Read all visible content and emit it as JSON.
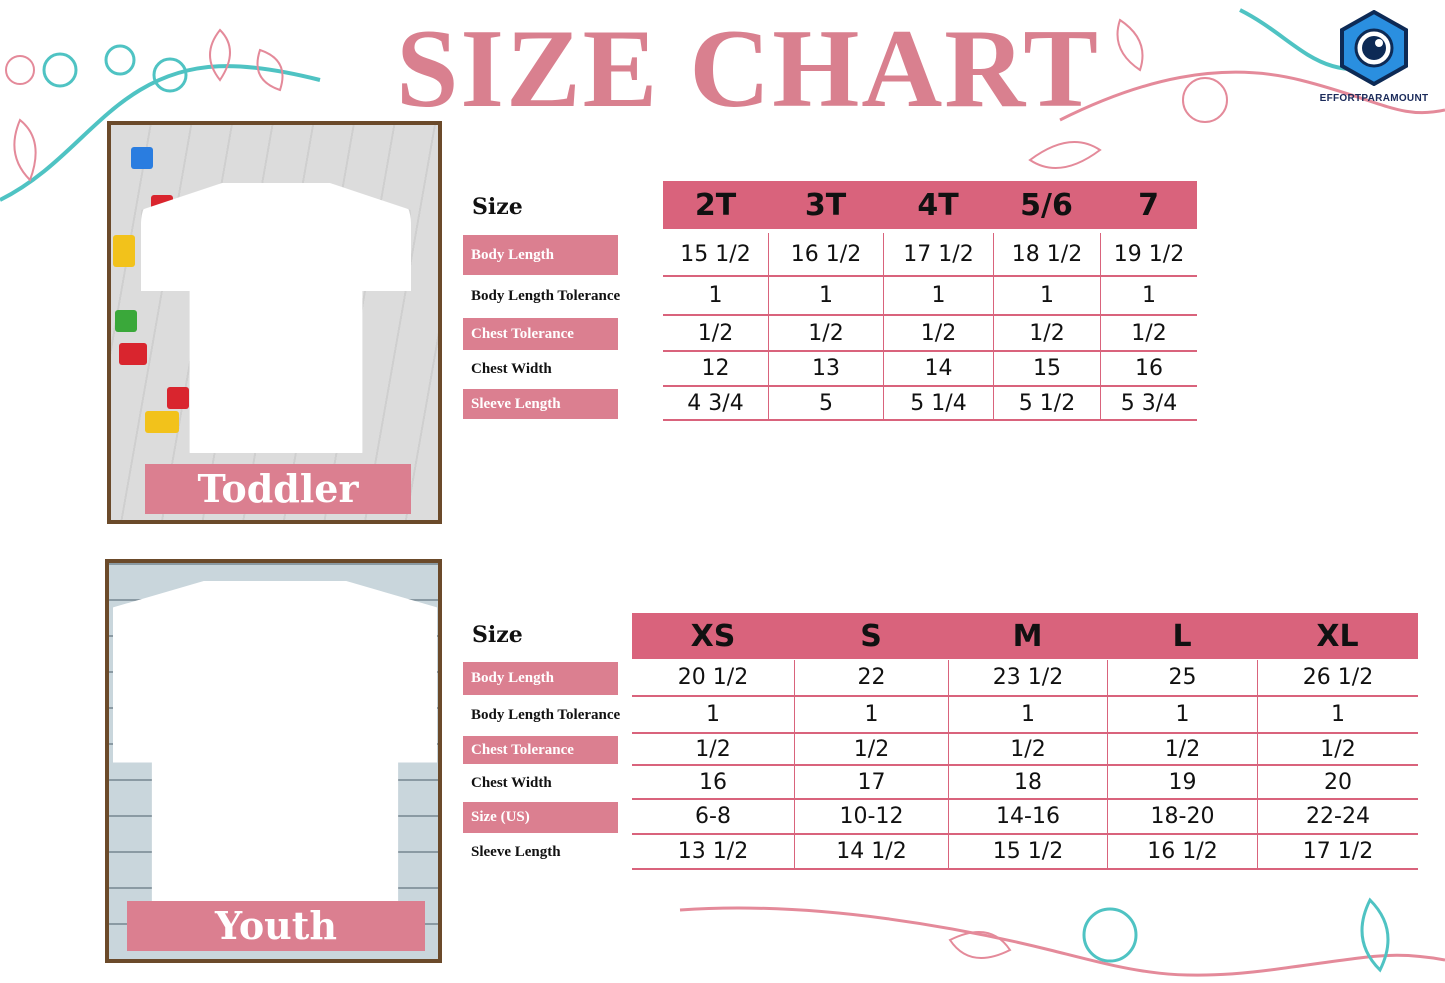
{
  "title": "SIZE CHART",
  "logo": {
    "text": "EFFORTPARAMOUNT",
    "icon": "camera-lens-hexagon-icon",
    "color": "#2a8fe0"
  },
  "colors": {
    "accent": "#d9637c",
    "label_bg": "#db7f90",
    "title": "#d9808f",
    "frame": "#6b4a2a"
  },
  "toddler": {
    "caption": "Toddler",
    "size_label": "Size",
    "sizes": [
      "2T",
      "3T",
      "4T",
      "5/6",
      "7"
    ],
    "rows": [
      {
        "label": "Body Length",
        "highlight": true,
        "values": [
          "15 1/2",
          "16 1/2",
          "17 1/2",
          "18 1/2",
          "19 1/2"
        ]
      },
      {
        "label": "Body Length Tolerance",
        "highlight": false,
        "values": [
          "1",
          "1",
          "1",
          "1",
          "1"
        ]
      },
      {
        "label": "Chest Tolerance",
        "highlight": true,
        "values": [
          "1/2",
          "1/2",
          "1/2",
          "1/2",
          "1/2"
        ]
      },
      {
        "label": "Chest Width",
        "highlight": false,
        "values": [
          "12",
          "13",
          "14",
          "15",
          "16"
        ]
      },
      {
        "label": "Sleeve Length",
        "highlight": true,
        "values": [
          "4 3/4",
          "5",
          "5 1/4",
          "5 1/2",
          "5 3/4"
        ]
      }
    ]
  },
  "youth": {
    "caption": "Youth",
    "size_label": "Size",
    "sizes": [
      "XS",
      "S",
      "M",
      "L",
      "XL"
    ],
    "rows": [
      {
        "label": "Body Length",
        "highlight": true,
        "values": [
          "20 1/2",
          "22",
          "23 1/2",
          "25",
          "26 1/2"
        ]
      },
      {
        "label": "Body Length Tolerance",
        "highlight": false,
        "values": [
          "1",
          "1",
          "1",
          "1",
          "1"
        ]
      },
      {
        "label": "Chest Tolerance",
        "highlight": true,
        "values": [
          "1/2",
          "1/2",
          "1/2",
          "1/2",
          "1/2"
        ]
      },
      {
        "label": "Chest Width",
        "highlight": false,
        "values": [
          "16",
          "17",
          "18",
          "19",
          "20"
        ]
      },
      {
        "label": "Size (US)",
        "highlight": true,
        "values": [
          "6-8",
          "10-12",
          "14-16",
          "18-20",
          "22-24"
        ]
      },
      {
        "label": "Sleeve Length",
        "highlight": false,
        "values": [
          "13 1/2",
          "14 1/2",
          "15 1/2",
          "16 1/2",
          "17 1/2"
        ]
      }
    ]
  }
}
